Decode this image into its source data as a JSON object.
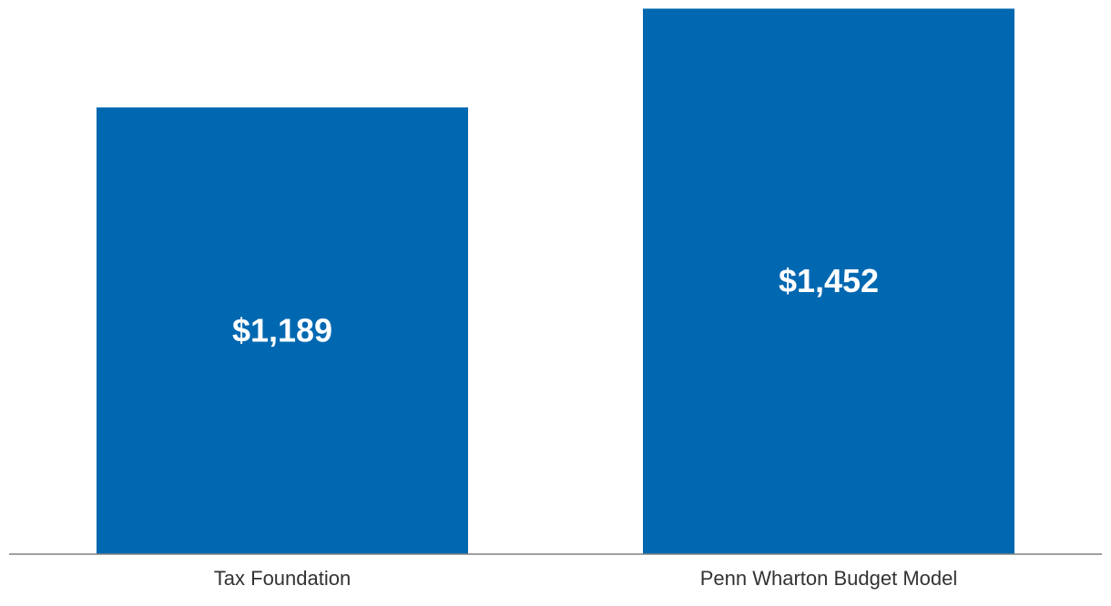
{
  "chart_data": {
    "type": "bar",
    "categories": [
      "Tax Foundation",
      "Penn Wharton Budget Model"
    ],
    "values": [
      1189,
      1452
    ],
    "value_labels": [
      "$1,189",
      "$1,452"
    ],
    "title": "",
    "xlabel": "",
    "ylabel": "",
    "ylim": [
      0,
      1475
    ],
    "grid": false,
    "legend": "none",
    "colors": {
      "bar": "#0068b1",
      "axis": "#808080",
      "label_text": "#333333",
      "value_text": "#ffffff"
    }
  }
}
